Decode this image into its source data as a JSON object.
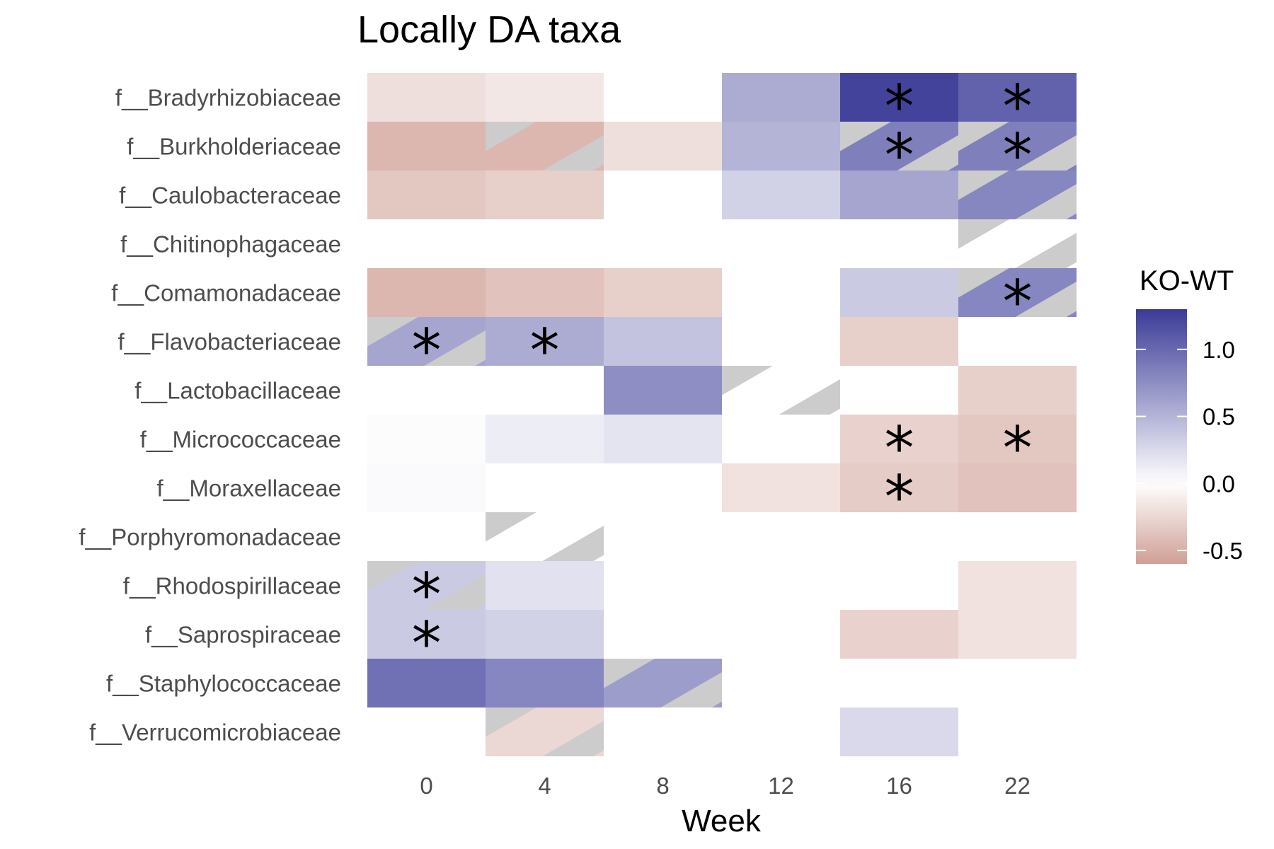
{
  "chart_data": {
    "type": "heatmap",
    "title": "Locally DA taxa",
    "xlabel": "Week",
    "ylabel": "",
    "x": [
      0,
      4,
      8,
      12,
      16,
      22
    ],
    "rows": [
      "f__Bradyrhizobiaceae",
      "f__Burkholderiaceae",
      "f__Caulobacteraceae",
      "f__Chitinophagaceae",
      "f__Comamonadaceae",
      "f__Flavobacteriaceae",
      "f__Lactobacillaceae",
      "f__Micrococcaceae",
      "f__Moraxellaceae",
      "f__Porphyromonadaceae",
      "f__Rhodospirillaceae",
      "f__Saprospiraceae",
      "f__Staphylococcaceae",
      "f__Verrucomicrobiaceae"
    ],
    "cells": [
      {
        "row": "f__Bradyrhizobiaceae",
        "week": 0,
        "value": -0.2,
        "hatched": false,
        "significant": false
      },
      {
        "row": "f__Bradyrhizobiaceae",
        "week": 4,
        "value": -0.15,
        "hatched": false,
        "significant": false
      },
      {
        "row": "f__Bradyrhizobiaceae",
        "week": 12,
        "value": 0.55,
        "hatched": false,
        "significant": false
      },
      {
        "row": "f__Bradyrhizobiaceae",
        "week": 16,
        "value": 1.25,
        "hatched": false,
        "significant": true
      },
      {
        "row": "f__Bradyrhizobiaceae",
        "week": 22,
        "value": 1.05,
        "hatched": false,
        "significant": true
      },
      {
        "row": "f__Burkholderiaceae",
        "week": 0,
        "value": -0.45,
        "hatched": false,
        "significant": false
      },
      {
        "row": "f__Burkholderiaceae",
        "week": 4,
        "value": -0.45,
        "hatched": true,
        "significant": false
      },
      {
        "row": "f__Burkholderiaceae",
        "week": 8,
        "value": -0.2,
        "hatched": false,
        "significant": false
      },
      {
        "row": "f__Burkholderiaceae",
        "week": 12,
        "value": 0.5,
        "hatched": false,
        "significant": false
      },
      {
        "row": "f__Burkholderiaceae",
        "week": 16,
        "value": 0.85,
        "hatched": true,
        "significant": true
      },
      {
        "row": "f__Burkholderiaceae",
        "week": 22,
        "value": 0.85,
        "hatched": true,
        "significant": true
      },
      {
        "row": "f__Caulobacteraceae",
        "week": 0,
        "value": -0.35,
        "hatched": false,
        "significant": false
      },
      {
        "row": "f__Caulobacteraceae",
        "week": 4,
        "value": -0.3,
        "hatched": false,
        "significant": false
      },
      {
        "row": "f__Caulobacteraceae",
        "week": 12,
        "value": 0.3,
        "hatched": false,
        "significant": false
      },
      {
        "row": "f__Caulobacteraceae",
        "week": 16,
        "value": 0.6,
        "hatched": false,
        "significant": false
      },
      {
        "row": "f__Caulobacteraceae",
        "week": 22,
        "value": 0.8,
        "hatched": true,
        "significant": false
      },
      {
        "row": "f__Chitinophagaceae",
        "week": 22,
        "value": 0.0,
        "hatched": true,
        "significant": false
      },
      {
        "row": "f__Comamonadaceae",
        "week": 0,
        "value": -0.45,
        "hatched": false,
        "significant": false
      },
      {
        "row": "f__Comamonadaceae",
        "week": 4,
        "value": -0.38,
        "hatched": false,
        "significant": false
      },
      {
        "row": "f__Comamonadaceae",
        "week": 8,
        "value": -0.3,
        "hatched": false,
        "significant": false
      },
      {
        "row": "f__Comamonadaceae",
        "week": 16,
        "value": 0.35,
        "hatched": false,
        "significant": false
      },
      {
        "row": "f__Comamonadaceae",
        "week": 22,
        "value": 0.8,
        "hatched": true,
        "significant": true
      },
      {
        "row": "f__Flavobacteriaceae",
        "week": 0,
        "value": 0.6,
        "hatched": true,
        "significant": true
      },
      {
        "row": "f__Flavobacteriaceae",
        "week": 4,
        "value": 0.55,
        "hatched": false,
        "significant": true
      },
      {
        "row": "f__Flavobacteriaceae",
        "week": 8,
        "value": 0.4,
        "hatched": false,
        "significant": false
      },
      {
        "row": "f__Flavobacteriaceae",
        "week": 16,
        "value": -0.3,
        "hatched": false,
        "significant": false
      },
      {
        "row": "f__Lactobacillaceae",
        "week": 8,
        "value": 0.75,
        "hatched": false,
        "significant": false
      },
      {
        "row": "f__Lactobacillaceae",
        "week": 12,
        "value": 0.0,
        "hatched": true,
        "significant": false
      },
      {
        "row": "f__Lactobacillaceae",
        "week": 22,
        "value": -0.3,
        "hatched": false,
        "significant": false
      },
      {
        "row": "f__Micrococcaceae",
        "week": 0,
        "value": 0.02,
        "hatched": false,
        "significant": false
      },
      {
        "row": "f__Micrococcaceae",
        "week": 4,
        "value": 0.12,
        "hatched": false,
        "significant": false
      },
      {
        "row": "f__Micrococcaceae",
        "week": 8,
        "value": 0.18,
        "hatched": false,
        "significant": false
      },
      {
        "row": "f__Micrococcaceae",
        "week": 16,
        "value": -0.28,
        "hatched": false,
        "significant": true
      },
      {
        "row": "f__Micrococcaceae",
        "week": 22,
        "value": -0.35,
        "hatched": false,
        "significant": true
      },
      {
        "row": "f__Moraxellaceae",
        "week": 0,
        "value": 0.03,
        "hatched": false,
        "significant": false
      },
      {
        "row": "f__Moraxellaceae",
        "week": 12,
        "value": -0.18,
        "hatched": false,
        "significant": false
      },
      {
        "row": "f__Moraxellaceae",
        "week": 16,
        "value": -0.32,
        "hatched": false,
        "significant": true
      },
      {
        "row": "f__Moraxellaceae",
        "week": 22,
        "value": -0.38,
        "hatched": false,
        "significant": false
      },
      {
        "row": "f__Porphyromonadaceae",
        "week": 4,
        "value": 0.0,
        "hatched": true,
        "significant": false
      },
      {
        "row": "f__Rhodospirillaceae",
        "week": 0,
        "value": 0.35,
        "hatched": true,
        "significant": true
      },
      {
        "row": "f__Rhodospirillaceae",
        "week": 4,
        "value": 0.2,
        "hatched": false,
        "significant": false
      },
      {
        "row": "f__Rhodospirillaceae",
        "week": 22,
        "value": -0.18,
        "hatched": false,
        "significant": false
      },
      {
        "row": "f__Saprospiraceae",
        "week": 0,
        "value": 0.35,
        "hatched": false,
        "significant": true
      },
      {
        "row": "f__Saprospiraceae",
        "week": 4,
        "value": 0.3,
        "hatched": false,
        "significant": false
      },
      {
        "row": "f__Saprospiraceae",
        "week": 16,
        "value": -0.28,
        "hatched": false,
        "significant": false
      },
      {
        "row": "f__Saprospiraceae",
        "week": 22,
        "value": -0.18,
        "hatched": false,
        "significant": false
      },
      {
        "row": "f__Staphylococcaceae",
        "week": 0,
        "value": 0.95,
        "hatched": false,
        "significant": false
      },
      {
        "row": "f__Staphylococcaceae",
        "week": 4,
        "value": 0.8,
        "hatched": false,
        "significant": false
      },
      {
        "row": "f__Staphylococcaceae",
        "week": 8,
        "value": 0.65,
        "hatched": true,
        "significant": false
      },
      {
        "row": "f__Verrucomicrobiaceae",
        "week": 4,
        "value": -0.25,
        "hatched": true,
        "significant": false
      },
      {
        "row": "f__Verrucomicrobiaceae",
        "week": 16,
        "value": 0.25,
        "hatched": false,
        "significant": false
      }
    ],
    "significance_marker": "*",
    "legend": {
      "title": "KO-WT",
      "ticks": [
        1.0,
        0.5,
        0.0,
        -0.5
      ],
      "tick_labels": [
        "1.0",
        "0.5",
        "0.0",
        "-0.5"
      ],
      "range": [
        -0.6,
        1.3
      ],
      "colors": {
        "high": "#3b3b98",
        "mid": "#ffffff",
        "low": "#cf9f95"
      }
    },
    "hatch_color": "#cccccc",
    "grid": false,
    "legend_position": "right"
  }
}
